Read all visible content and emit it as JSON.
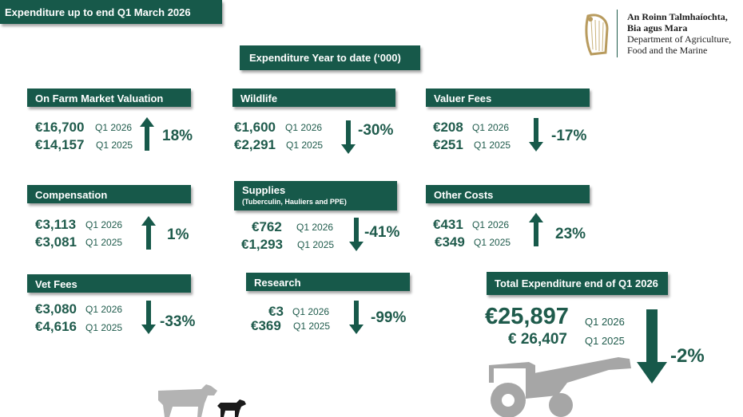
{
  "header": {
    "title": "Expenditure up to end Q1 March  2026",
    "subtitle": "Expenditure Year to date (‘000)"
  },
  "logo": {
    "line1": "An Roinn Talmhaíochta,",
    "line2": "Bia agus Mara",
    "line3": "Department of Agriculture,",
    "line4": "Food and the Marine",
    "icon": "harp-icon"
  },
  "colors": {
    "accent": "#17594a",
    "text": "#1f5b4c",
    "illustration": "#b0b0b0"
  },
  "categories": [
    {
      "id": "on-farm",
      "label": "On Farm Market Valuation",
      "current_value": "€16,700",
      "current_label": "Q1 2026",
      "prior_value": "€14,157",
      "prior_label": "Q1 2025",
      "change": "18%",
      "direction": "up"
    },
    {
      "id": "wildlife",
      "label": "Wildlife",
      "current_value": "€1,600",
      "current_label": "Q1 2026",
      "prior_value": "€2,291",
      "prior_label": "Q1 2025",
      "change": "-30%",
      "direction": "down"
    },
    {
      "id": "valuer-fees",
      "label": "Valuer Fees",
      "current_value": "€208",
      "current_label": "Q1 2026",
      "prior_value": "€251",
      "prior_label": "Q1 2025",
      "change": "-17%",
      "direction": "down"
    },
    {
      "id": "compensation",
      "label": "Compensation",
      "current_value": "€3,113",
      "current_label": "Q1 2026",
      "prior_value": "€3,081",
      "prior_label": "Q1 2025",
      "change": "1%",
      "direction": "up"
    },
    {
      "id": "supplies",
      "label": "Supplies",
      "sublabel": "(Tuberculin, Hauliers and PPE)",
      "current_value": "€762",
      "current_label": "Q1 2026",
      "prior_value": "€1,293",
      "prior_label": "Q1 2025",
      "change": "-41%",
      "direction": "down"
    },
    {
      "id": "other-costs",
      "label": "Other Costs",
      "current_value": "€431",
      "current_label": "Q1 2026",
      "prior_value": "€349",
      "prior_label": "Q1 2025",
      "change": "23%",
      "direction": "up"
    },
    {
      "id": "vet-fees",
      "label": "Vet Fees",
      "current_value": "€3,080",
      "current_label": "Q1 2026",
      "prior_value": "€4,616",
      "prior_label": "Q1 2025",
      "change": "-33%",
      "direction": "down"
    },
    {
      "id": "research",
      "label": "Research",
      "current_value": "€3",
      "current_label": "Q1 2026",
      "prior_value": "€369",
      "prior_label": "Q1 2025",
      "change": "-99%",
      "direction": "down"
    }
  ],
  "total": {
    "label": "Total Expenditure end of Q1 2026",
    "current_value": "€25,897",
    "current_label": "Q1 2026",
    "prior_value": "€ 26,407",
    "prior_label": "Q1 2025",
    "change": "-2%",
    "direction": "down"
  },
  "illustrations": [
    "cow-icon",
    "calf-icon",
    "tractor-icon"
  ]
}
